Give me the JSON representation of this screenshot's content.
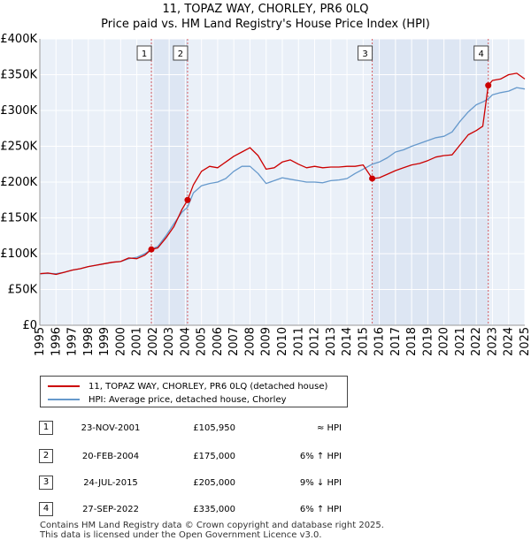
{
  "chart_data": {
    "type": "line",
    "title": "11, TOPAZ WAY, CHORLEY, PR6 0LQ",
    "subtitle": "Price paid vs. HM Land Registry's House Price Index (HPI)",
    "xlim": [
      1995,
      2025
    ],
    "ylim": [
      0,
      400000
    ],
    "x_ticks": [
      "1995",
      "1996",
      "1997",
      "1998",
      "1999",
      "2000",
      "2001",
      "2002",
      "2003",
      "2004",
      "2005",
      "2006",
      "2007",
      "2008",
      "2009",
      "2010",
      "2011",
      "2012",
      "2013",
      "2014",
      "2015",
      "2016",
      "2017",
      "2018",
      "2019",
      "2020",
      "2021",
      "2022",
      "2023",
      "2024",
      "2025"
    ],
    "y_ticks": [
      {
        "value": 0,
        "label": "£0"
      },
      {
        "value": 50000,
        "label": "£50K"
      },
      {
        "value": 100000,
        "label": "£100K"
      },
      {
        "value": 150000,
        "label": "£150K"
      },
      {
        "value": 200000,
        "label": "£200K"
      },
      {
        "value": 250000,
        "label": "£250K"
      },
      {
        "value": 300000,
        "label": "£300K"
      },
      {
        "value": 350000,
        "label": "£350K"
      },
      {
        "value": 400000,
        "label": "£400K"
      }
    ],
    "series": [
      {
        "name": "11, TOPAZ WAY, CHORLEY, PR6 0LQ (detached house)",
        "color": "#cc0000",
        "points": [
          [
            1995.0,
            72000
          ],
          [
            1995.5,
            73000
          ],
          [
            1996.0,
            71000
          ],
          [
            1996.5,
            74000
          ],
          [
            1997.0,
            77000
          ],
          [
            1997.5,
            79000
          ],
          [
            1998.0,
            82000
          ],
          [
            1998.5,
            84000
          ],
          [
            1999.0,
            86000
          ],
          [
            1999.5,
            88000
          ],
          [
            2000.0,
            89000
          ],
          [
            2000.5,
            94000
          ],
          [
            2001.0,
            93000
          ],
          [
            2001.5,
            98000
          ],
          [
            2001.9,
            105950
          ],
          [
            2002.3,
            108000
          ],
          [
            2002.8,
            122000
          ],
          [
            2003.3,
            138000
          ],
          [
            2003.8,
            162000
          ],
          [
            2004.14,
            175000
          ],
          [
            2004.5,
            196000
          ],
          [
            2005.0,
            215000
          ],
          [
            2005.5,
            222000
          ],
          [
            2006.0,
            220000
          ],
          [
            2006.5,
            228000
          ],
          [
            2007.0,
            236000
          ],
          [
            2007.5,
            242000
          ],
          [
            2008.0,
            248000
          ],
          [
            2008.5,
            237000
          ],
          [
            2009.0,
            218000
          ],
          [
            2009.5,
            220000
          ],
          [
            2010.0,
            228000
          ],
          [
            2010.5,
            231000
          ],
          [
            2011.0,
            225000
          ],
          [
            2011.5,
            220000
          ],
          [
            2012.0,
            222000
          ],
          [
            2012.5,
            220000
          ],
          [
            2013.0,
            221000
          ],
          [
            2013.5,
            221000
          ],
          [
            2014.0,
            222000
          ],
          [
            2014.5,
            222000
          ],
          [
            2015.0,
            224000
          ],
          [
            2015.56,
            205000
          ],
          [
            2016.0,
            206000
          ],
          [
            2016.5,
            211000
          ],
          [
            2017.0,
            216000
          ],
          [
            2017.5,
            220000
          ],
          [
            2018.0,
            224000
          ],
          [
            2018.5,
            226000
          ],
          [
            2019.0,
            230000
          ],
          [
            2019.5,
            235000
          ],
          [
            2020.0,
            237000
          ],
          [
            2020.5,
            238000
          ],
          [
            2021.0,
            252000
          ],
          [
            2021.5,
            266000
          ],
          [
            2022.0,
            272000
          ],
          [
            2022.4,
            278000
          ],
          [
            2022.74,
            335000
          ],
          [
            2023.0,
            342000
          ],
          [
            2023.5,
            344000
          ],
          [
            2024.0,
            350000
          ],
          [
            2024.5,
            352000
          ],
          [
            2025.0,
            344000
          ]
        ]
      },
      {
        "name": "HPI: Average price, detached house, Chorley",
        "color": "#6699cc",
        "points": [
          [
            1995.0,
            72000
          ],
          [
            1995.5,
            72500
          ],
          [
            1996.0,
            72000
          ],
          [
            1996.5,
            74000
          ],
          [
            1997.0,
            77000
          ],
          [
            1997.5,
            79000
          ],
          [
            1998.0,
            82000
          ],
          [
            1998.5,
            84000
          ],
          [
            1999.0,
            86000
          ],
          [
            1999.5,
            88000
          ],
          [
            2000.0,
            89000
          ],
          [
            2000.5,
            93000
          ],
          [
            2001.0,
            95000
          ],
          [
            2001.5,
            100000
          ],
          [
            2001.9,
            106000
          ],
          [
            2002.3,
            110000
          ],
          [
            2002.8,
            125000
          ],
          [
            2003.3,
            142000
          ],
          [
            2003.8,
            158000
          ],
          [
            2004.14,
            165000
          ],
          [
            2004.5,
            185000
          ],
          [
            2005.0,
            195000
          ],
          [
            2005.5,
            198000
          ],
          [
            2006.0,
            200000
          ],
          [
            2006.5,
            205000
          ],
          [
            2007.0,
            215000
          ],
          [
            2007.5,
            222000
          ],
          [
            2008.0,
            222000
          ],
          [
            2008.5,
            212000
          ],
          [
            2009.0,
            198000
          ],
          [
            2009.5,
            202000
          ],
          [
            2010.0,
            206000
          ],
          [
            2010.5,
            204000
          ],
          [
            2011.0,
            202000
          ],
          [
            2011.5,
            200000
          ],
          [
            2012.0,
            200000
          ],
          [
            2012.5,
            199000
          ],
          [
            2013.0,
            202000
          ],
          [
            2013.5,
            203000
          ],
          [
            2014.0,
            205000
          ],
          [
            2014.5,
            212000
          ],
          [
            2015.0,
            218000
          ],
          [
            2015.56,
            225000
          ],
          [
            2016.0,
            228000
          ],
          [
            2016.5,
            234000
          ],
          [
            2017.0,
            242000
          ],
          [
            2017.5,
            245000
          ],
          [
            2018.0,
            250000
          ],
          [
            2018.5,
            254000
          ],
          [
            2019.0,
            258000
          ],
          [
            2019.5,
            262000
          ],
          [
            2020.0,
            264000
          ],
          [
            2020.5,
            270000
          ],
          [
            2021.0,
            285000
          ],
          [
            2021.5,
            298000
          ],
          [
            2022.0,
            308000
          ],
          [
            2022.4,
            312000
          ],
          [
            2022.74,
            316000
          ],
          [
            2023.0,
            322000
          ],
          [
            2023.5,
            325000
          ],
          [
            2024.0,
            327000
          ],
          [
            2024.5,
            332000
          ],
          [
            2025.0,
            330000
          ]
        ]
      }
    ],
    "sales": [
      {
        "num": "1",
        "x": 2001.9,
        "value": 105950
      },
      {
        "num": "2",
        "x": 2004.14,
        "value": 175000
      },
      {
        "num": "3",
        "x": 2015.56,
        "value": 205000
      },
      {
        "num": "4",
        "x": 2022.74,
        "value": 335000
      }
    ],
    "shaded_periods": [
      [
        2001.9,
        2004.14
      ],
      [
        2015.56,
        2022.74
      ]
    ]
  },
  "legend": {
    "property": "11, TOPAZ WAY, CHORLEY, PR6 0LQ (detached house)",
    "hpi": "HPI: Average price, detached house, Chorley",
    "property_color": "#cc0000",
    "hpi_color": "#6699cc"
  },
  "sales_table": [
    {
      "num": "1",
      "date": "23-NOV-2001",
      "price": "£105,950",
      "hpi": "≈ HPI"
    },
    {
      "num": "2",
      "date": "20-FEB-2004",
      "price": "£175,000",
      "hpi": "6% ↑ HPI"
    },
    {
      "num": "3",
      "date": "24-JUL-2015",
      "price": "£205,000",
      "hpi": "9% ↓ HPI"
    },
    {
      "num": "4",
      "date": "27-SEP-2022",
      "price": "£335,000",
      "hpi": "6% ↑ HPI"
    }
  ],
  "footer": {
    "line1": "Contains HM Land Registry data © Crown copyright and database right 2025.",
    "line2": "This data is licensed under the Open Government Licence v3.0."
  }
}
